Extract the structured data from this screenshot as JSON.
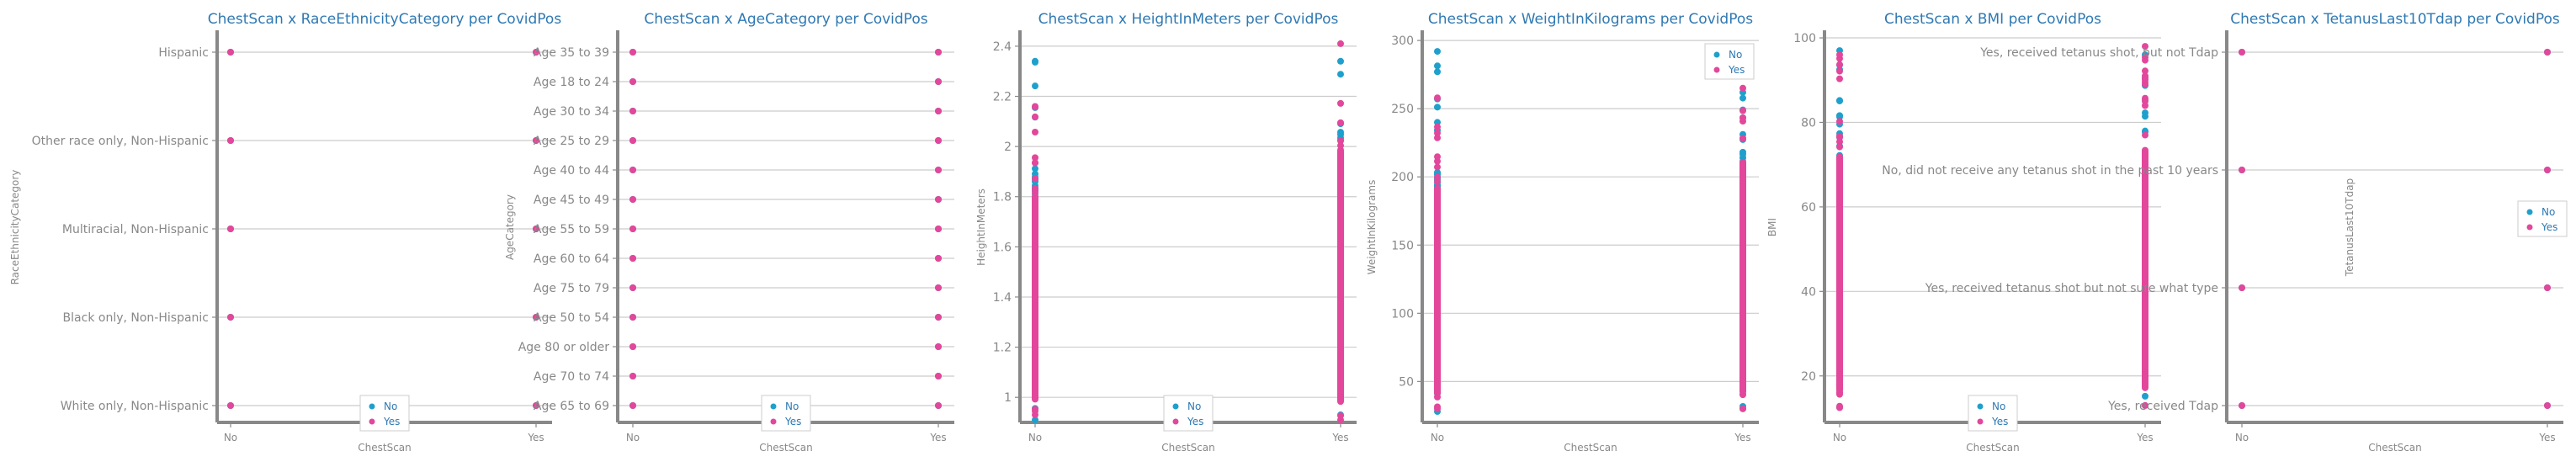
{
  "colors": {
    "no": "#1fa0cc",
    "yes": "#e2479b",
    "title": "#2f79b3",
    "axis": "#888888",
    "grid": "#cccccc",
    "text": "#888888"
  },
  "chart_data": [
    {
      "type": "scatter",
      "title": "ChestScan x RaceEthnicityCategory per CovidPos",
      "xlabel": "ChestScan",
      "ylabel": "RaceEthnicityCategory",
      "categories": [
        "No",
        "Yes"
      ],
      "y_categories": [
        "Hispanic",
        "Other race only, Non-Hispanic",
        "Multiracial, Non-Hispanic",
        "Black only, Non-Hispanic",
        "White only, Non-Hispanic"
      ],
      "series": [
        {
          "name": "No",
          "points": [
            [
              "No",
              "Hispanic"
            ],
            [
              "No",
              "Other race only, Non-Hispanic"
            ],
            [
              "No",
              "Multiracial, Non-Hispanic"
            ],
            [
              "No",
              "Black only, Non-Hispanic"
            ],
            [
              "No",
              "White only, Non-Hispanic"
            ],
            [
              "Yes",
              "Hispanic"
            ],
            [
              "Yes",
              "Other race only, Non-Hispanic"
            ],
            [
              "Yes",
              "Multiracial, Non-Hispanic"
            ],
            [
              "Yes",
              "Black only, Non-Hispanic"
            ],
            [
              "Yes",
              "White only, Non-Hispanic"
            ]
          ]
        },
        {
          "name": "Yes",
          "points": [
            [
              "No",
              "Hispanic"
            ],
            [
              "No",
              "Other race only, Non-Hispanic"
            ],
            [
              "No",
              "Multiracial, Non-Hispanic"
            ],
            [
              "No",
              "Black only, Non-Hispanic"
            ],
            [
              "No",
              "White only, Non-Hispanic"
            ],
            [
              "Yes",
              "Hispanic"
            ],
            [
              "Yes",
              "Other race only, Non-Hispanic"
            ],
            [
              "Yes",
              "Multiracial, Non-Hispanic"
            ],
            [
              "Yes",
              "Black only, Non-Hispanic"
            ],
            [
              "Yes",
              "White only, Non-Hispanic"
            ]
          ]
        }
      ],
      "grid": true,
      "legend": "bottom-center"
    },
    {
      "type": "scatter",
      "title": "ChestScan x AgeCategory per CovidPos",
      "xlabel": "ChestScan",
      "ylabel": "AgeCategory",
      "categories": [
        "No",
        "Yes"
      ],
      "y_categories": [
        "Age 35 to 39",
        "Age 18 to 24",
        "Age 30 to 34",
        "Age 25 to 29",
        "Age 40 to 44",
        "Age 45 to 49",
        "Age 55 to 59",
        "Age 60 to 64",
        "Age 75 to 79",
        "Age 50 to 54",
        "Age 80 or older",
        "Age 70 to 74",
        "Age 65 to 69"
      ],
      "series": [
        {
          "name": "No",
          "points": "all ChestScan x AgeCategory combinations"
        },
        {
          "name": "Yes",
          "points": "all ChestScan x AgeCategory combinations"
        }
      ],
      "grid": true,
      "legend": "bottom-center"
    },
    {
      "type": "scatter",
      "title": "ChestScan x HeightInMeters per CovidPos",
      "xlabel": "ChestScan",
      "ylabel": "HeightInMeters",
      "categories": [
        "No",
        "Yes"
      ],
      "y_ticks": [
        1.0,
        1.2,
        1.4,
        1.6,
        1.8,
        2.0,
        2.2,
        2.4
      ],
      "ylim": [
        0.9,
        2.45
      ],
      "series": [
        {
          "name": "No",
          "ranges": {
            "No": [
              0.91,
              2.34
            ],
            "Yes": [
              0.93,
              2.34
            ]
          }
        },
        {
          "name": "Yes",
          "ranges": {
            "No": [
              0.93,
              2.16
            ],
            "Yes": [
              0.91,
              2.41
            ]
          }
        }
      ],
      "grid": true,
      "legend": "bottom-center"
    },
    {
      "type": "scatter",
      "title": "ChestScan x WeightInKilograms per CovidPos",
      "xlabel": "ChestScan",
      "ylabel": "WeightInKilograms",
      "categories": [
        "No",
        "Yes"
      ],
      "y_ticks": [
        50,
        100,
        150,
        200,
        250,
        300
      ],
      "ylim": [
        20,
        305
      ],
      "series": [
        {
          "name": "No",
          "ranges": {
            "No": [
              28,
              292
            ],
            "Yes": [
              30,
              262
            ]
          }
        },
        {
          "name": "Yes",
          "ranges": {
            "No": [
              30,
              258
            ],
            "Yes": [
              30,
              284
            ]
          }
        }
      ],
      "grid": true,
      "legend": "top-right"
    },
    {
      "type": "scatter",
      "title": "ChestScan x BMI per CovidPos",
      "xlabel": "ChestScan",
      "ylabel": "BMI",
      "categories": [
        "No",
        "Yes"
      ],
      "y_ticks": [
        20,
        40,
        60,
        80,
        100
      ],
      "ylim": [
        9,
        101
      ],
      "series": [
        {
          "name": "No",
          "ranges": {
            "No": [
              12.5,
              97
            ],
            "Yes": [
              13,
              96
            ]
          }
        },
        {
          "name": "Yes",
          "ranges": {
            "No": [
              12.5,
              96
            ],
            "Yes": [
              13,
              98
            ]
          }
        }
      ],
      "grid": true,
      "legend": "bottom-center"
    },
    {
      "type": "scatter",
      "title": "ChestScan x TetanusLast10Tdap per CovidPos",
      "xlabel": "ChestScan",
      "ylabel": "TetanusLast10Tdap",
      "categories": [
        "No",
        "Yes"
      ],
      "y_categories": [
        "Yes, received tetanus shot, but not Tdap",
        "No, did not receive any tetanus shot in the past 10 years",
        "Yes, received tetanus shot but not sure what type",
        "Yes, received Tdap"
      ],
      "series": [
        {
          "name": "No",
          "points": "all ChestScan x TetanusLast10Tdap combinations"
        },
        {
          "name": "Yes",
          "points": "all ChestScan x TetanusLast10Tdap combinations"
        }
      ],
      "grid": true,
      "legend": "center-right"
    }
  ]
}
